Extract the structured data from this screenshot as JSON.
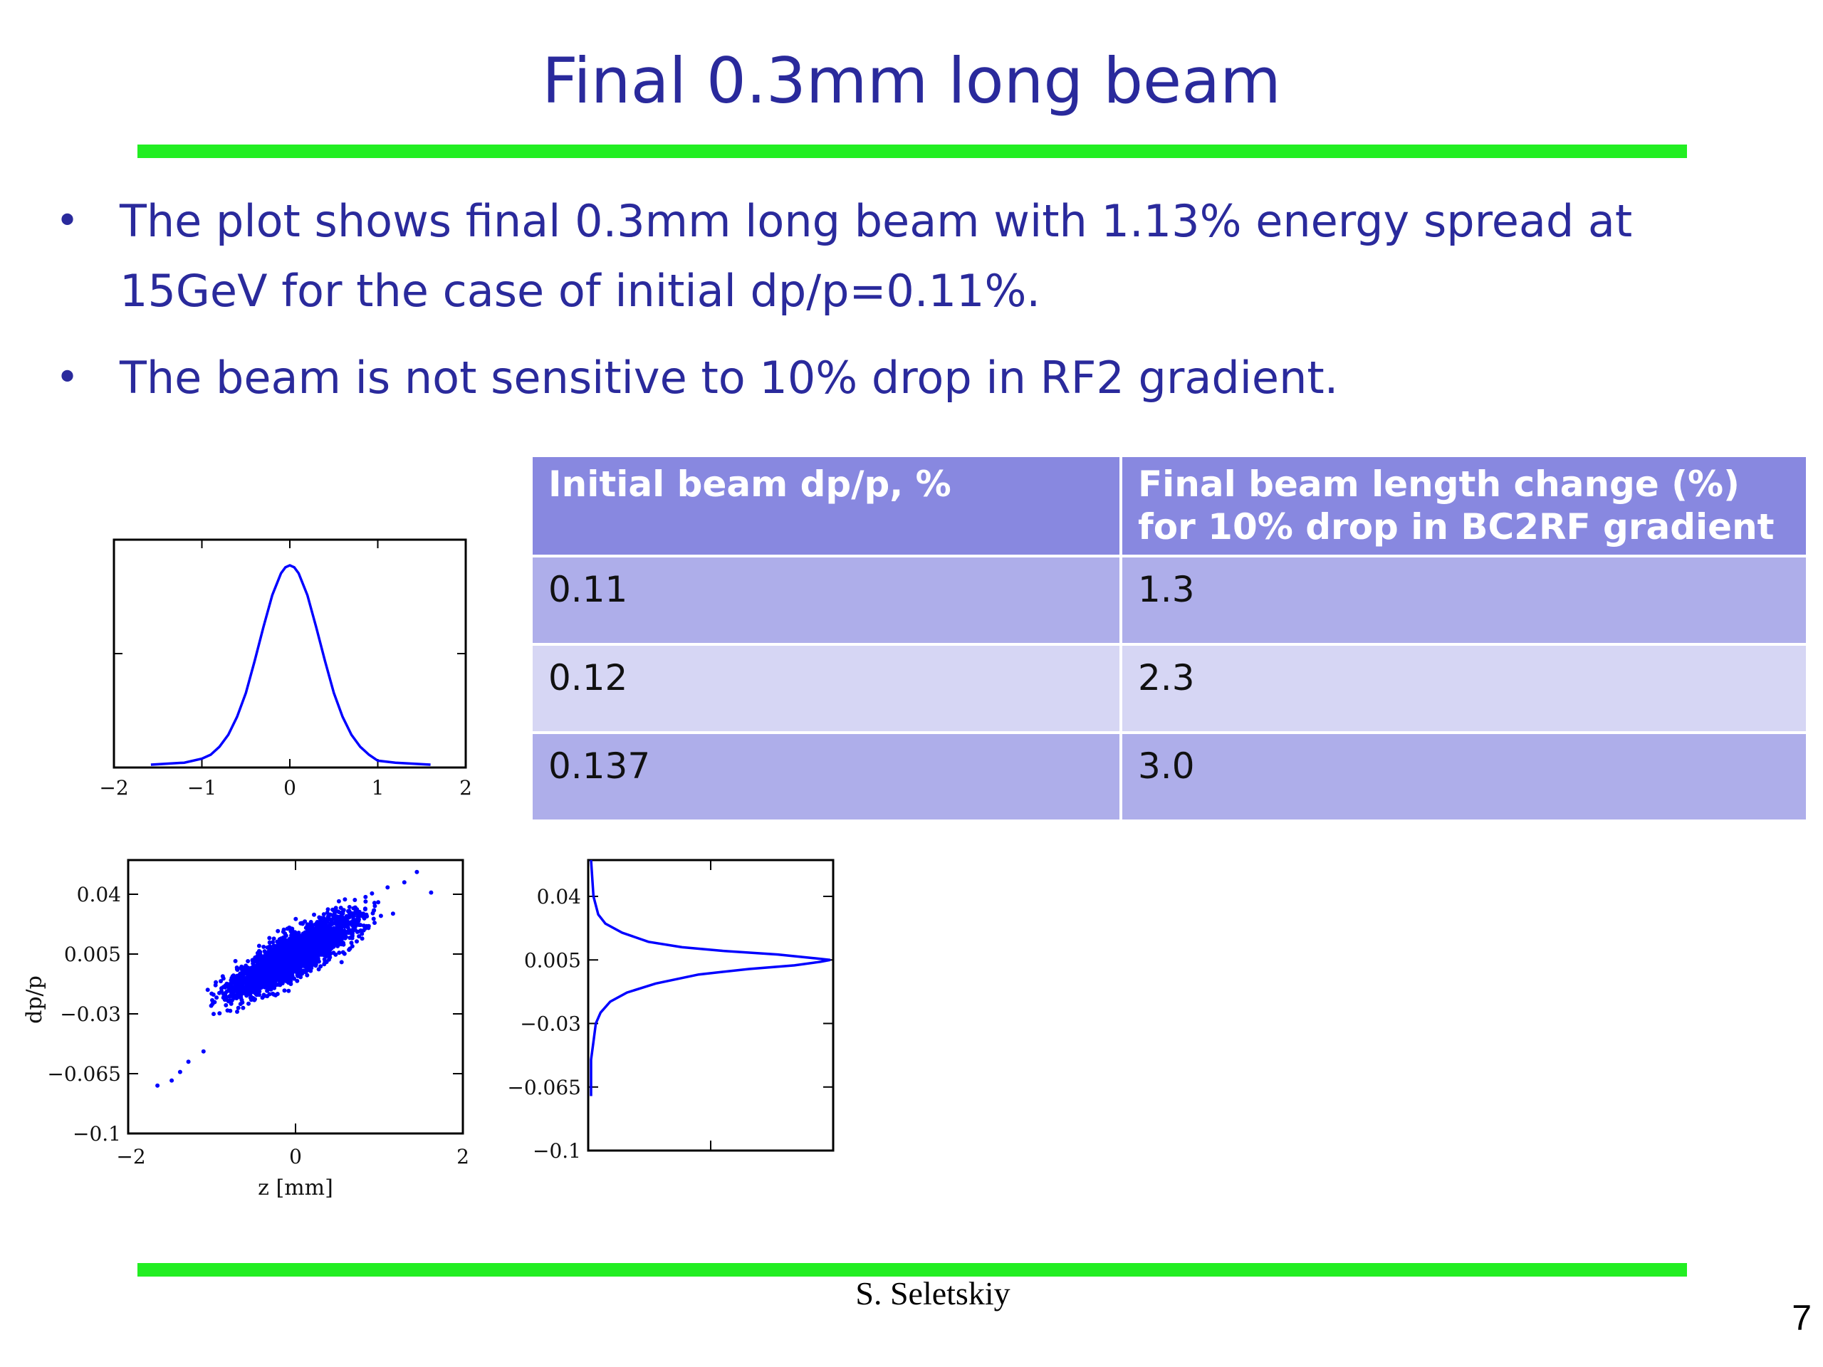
{
  "slide": {
    "title": "Final 0.3mm long beam",
    "bullets": [
      "The plot shows final 0.3mm long beam with 1.13% energy spread at 15GeV for the case of initial dp/p=0.11%.",
      "The beam is not sensitive to 10% drop in RF2 gradient."
    ],
    "bullet_glyph": "•",
    "footer": "S. Seletskiy",
    "page_number": "7",
    "accent_color": "#22ee22",
    "text_color": "#2a2a9c"
  },
  "table": {
    "headers": [
      "Initial beam dp/p, %",
      "Final beam length change (%) for 10% drop in BC2RF gradient"
    ],
    "rows": [
      [
        "0.11",
        "1.3"
      ],
      [
        "0.12",
        "2.3"
      ],
      [
        "0.137",
        "3.0"
      ]
    ],
    "header_color": "#8888e0",
    "row_colors": [
      "#aeaeea",
      "#d6d6f4"
    ]
  },
  "chart_data": [
    {
      "type": "line",
      "title": "",
      "xlabel": "",
      "ylabel": "",
      "xlim": [
        -2,
        2
      ],
      "ylim": [
        0,
        1
      ],
      "xticks": [
        "-2",
        "-1",
        "0",
        "1",
        "2"
      ],
      "series": [
        {
          "color": "#0000ff",
          "x": [
            -1.58,
            -1.2,
            -1.0,
            -0.9,
            -0.8,
            -0.7,
            -0.6,
            -0.5,
            -0.4,
            -0.3,
            -0.2,
            -0.1,
            -0.05,
            0.0,
            0.05,
            0.1,
            0.2,
            0.3,
            0.4,
            0.5,
            0.6,
            0.7,
            0.8,
            0.9,
            1.0,
            1.2,
            1.6
          ],
          "y": [
            0.0,
            0.01,
            0.03,
            0.05,
            0.09,
            0.15,
            0.24,
            0.36,
            0.52,
            0.69,
            0.85,
            0.96,
            0.99,
            1.0,
            0.99,
            0.96,
            0.85,
            0.69,
            0.52,
            0.36,
            0.24,
            0.15,
            0.09,
            0.05,
            0.02,
            0.01,
            0.0
          ]
        }
      ]
    },
    {
      "type": "scatter",
      "title": "",
      "xlabel": "z [mm]",
      "ylabel": "dp/p",
      "xlim": [
        -2,
        2
      ],
      "ylim": [
        -0.1,
        0.06
      ],
      "xticks": [
        "-2",
        "0",
        "2"
      ],
      "yticks": [
        "0.04",
        "0.005",
        "-0.03",
        "-0.065",
        "-0.1"
      ],
      "series": [
        {
          "color": "#0000ff",
          "description_points": "dense elliptical cloud of particles; core points and outliers",
          "core_center": [
            0.0,
            0.005
          ],
          "core_slope": 0.028,
          "spread_x": 0.55,
          "spread_y": 0.009,
          "outliers": [
            [
              1.45,
              0.053
            ],
            [
              1.62,
              0.041
            ],
            [
              1.3,
              0.047
            ],
            [
              -1.48,
              -0.069
            ],
            [
              -1.38,
              -0.064
            ],
            [
              -1.28,
              -0.058
            ],
            [
              -1.65,
              -0.072
            ],
            [
              1.1,
              0.044
            ],
            [
              -1.1,
              -0.052
            ]
          ]
        }
      ]
    },
    {
      "type": "line",
      "title": "",
      "xlabel": "",
      "ylabel": "",
      "orientation": "horizontal",
      "ylim": [
        -0.1,
        0.06
      ],
      "yticks": [
        "0.04",
        "0.005",
        "-0.03",
        "-0.065",
        "-0.1"
      ],
      "series": [
        {
          "color": "#0000ff",
          "y": [
            0.06,
            0.04,
            0.03,
            0.025,
            0.02,
            0.015,
            0.012,
            0.01,
            0.008,
            0.006,
            0.005,
            0.004,
            0.002,
            0.0,
            -0.003,
            -0.008,
            -0.013,
            -0.018,
            -0.024,
            -0.03,
            -0.04,
            -0.05,
            -0.06,
            -0.07
          ],
          "x": [
            0.0,
            0.01,
            0.03,
            0.06,
            0.13,
            0.24,
            0.38,
            0.55,
            0.78,
            0.93,
            1.0,
            0.96,
            0.85,
            0.66,
            0.45,
            0.27,
            0.15,
            0.08,
            0.04,
            0.02,
            0.01,
            0.0,
            0.0,
            0.0
          ]
        }
      ]
    }
  ]
}
